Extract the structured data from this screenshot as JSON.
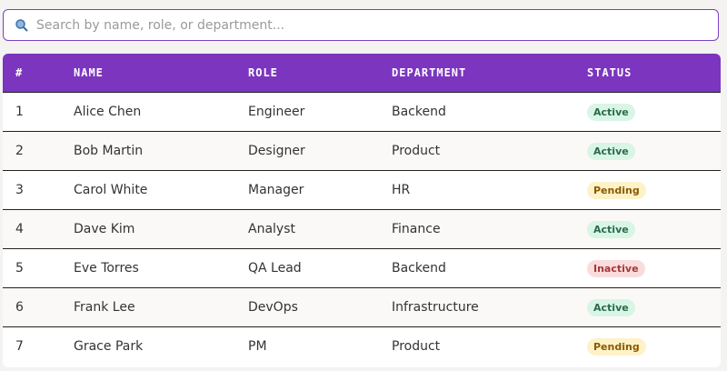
{
  "search": {
    "placeholder": "Search by name, role, or department..."
  },
  "table": {
    "headers": [
      "#",
      "NAME",
      "ROLE",
      "DEPARTMENT",
      "STATUS"
    ],
    "rows": [
      [
        "1",
        "Alice Chen",
        "Engineer",
        "Backend",
        "Active"
      ],
      [
        "2",
        "Bob Martin",
        "Designer",
        "Product",
        "Active"
      ],
      [
        "3",
        "Carol White",
        "Manager",
        "HR",
        "Pending"
      ],
      [
        "4",
        "Dave Kim",
        "Analyst",
        "Finance",
        "Active"
      ],
      [
        "5",
        "Eve Torres",
        "QA Lead",
        "Backend",
        "Inactive"
      ],
      [
        "6",
        "Frank Lee",
        "DevOps",
        "Infrastructure",
        "Active"
      ],
      [
        "7",
        "Grace Park",
        "PM",
        "Product",
        "Pending"
      ]
    ]
  }
}
